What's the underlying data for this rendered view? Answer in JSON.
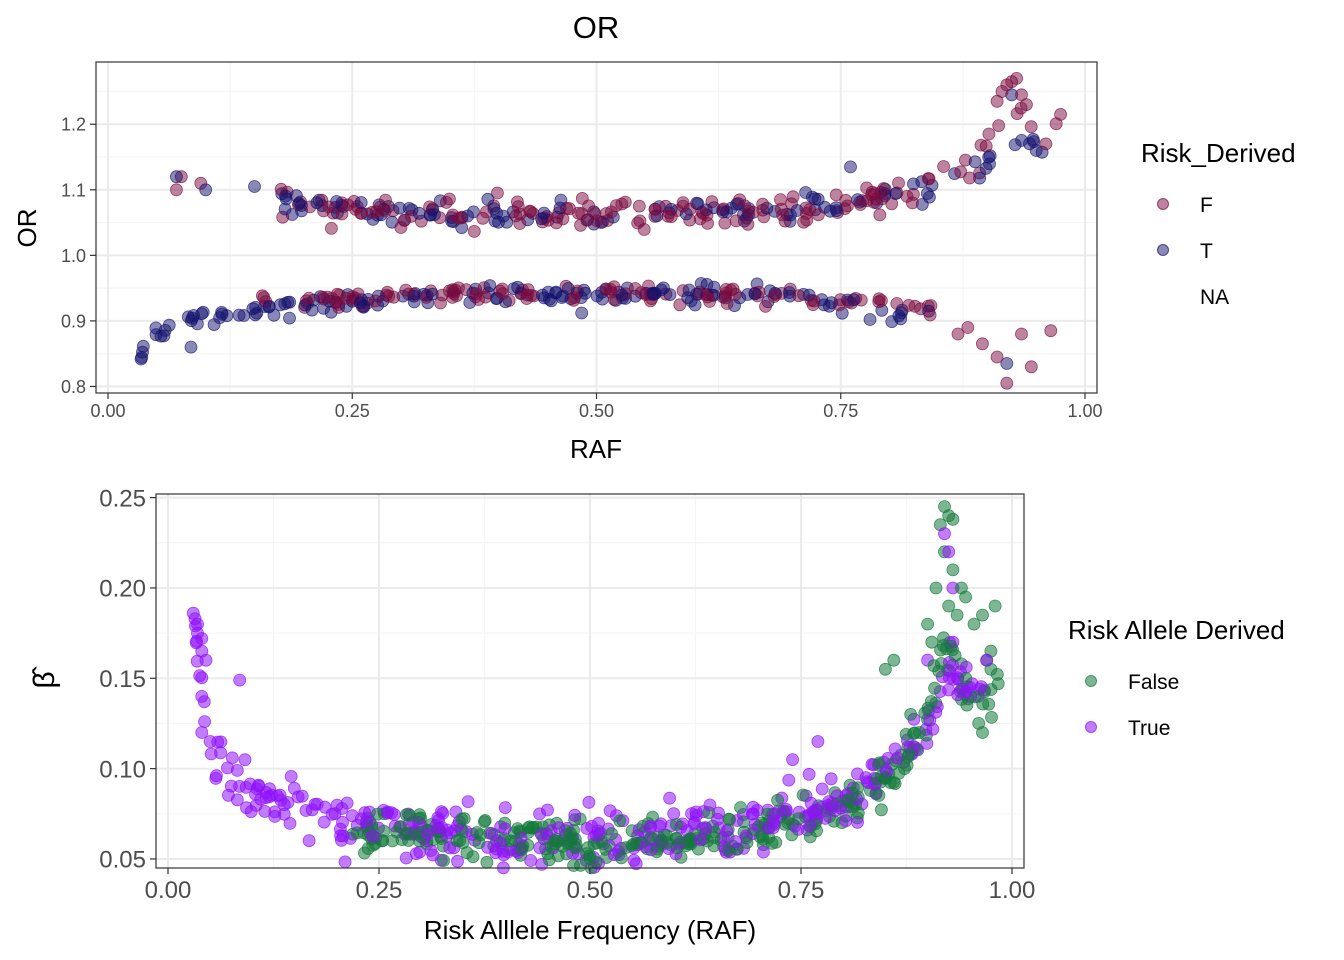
{
  "figure": {
    "background": "#FFFFFF",
    "panel_border": "#333333",
    "grid_major": "#EBEBEB",
    "grid_minor": "#F5F5F5"
  },
  "chart_data": [
    {
      "type": "scatter",
      "title": "OR",
      "xlabel": "RAF",
      "ylabel": "OR",
      "xlim": [
        0,
        1
      ],
      "ylim": [
        0.79,
        1.295
      ],
      "x_ticks": [
        "0.00",
        "0.25",
        "0.50",
        "0.75",
        "1.00"
      ],
      "x_tick_values": [
        0,
        0.25,
        0.5,
        0.75,
        1
      ],
      "y_ticks": [
        "0.8",
        "0.9",
        "1.0",
        "1.1",
        "1.2"
      ],
      "y_tick_values": [
        0.8,
        0.9,
        1.0,
        1.1,
        1.2
      ],
      "grid": true,
      "point_alpha": 0.5,
      "legend": {
        "title": "Risk_Derived",
        "position": "right",
        "entries": [
          {
            "label": "F",
            "color": "#7A0A3D"
          },
          {
            "label": "T",
            "color": "#14116E"
          },
          {
            "label": "NA",
            "color": "none"
          }
        ]
      },
      "series": [
        {
          "name": "F",
          "color": "#7A0A3D",
          "trends": [
            {
              "x": [
                0.18,
                0.25,
                0.35,
                0.45,
                0.55,
                0.65,
                0.72,
                0.78,
                0.83,
                0.87,
                0.9,
                0.92,
                0.93,
                0.95,
                0.97,
                0.98
              ],
              "y": [
                1.075,
                1.07,
                1.065,
                1.062,
                1.062,
                1.065,
                1.07,
                1.085,
                1.1,
                1.12,
                1.16,
                1.2,
                1.22,
                1.2,
                1.2,
                1.21
              ],
              "n": 160,
              "xjit": 0.01,
              "yjit": 0.012,
              "spread": 0.35
            },
            {
              "x": [
                0.15,
                0.25,
                0.35,
                0.45,
                0.55,
                0.65,
                0.72,
                0.78,
                0.82,
                0.85
              ],
              "y": [
                0.925,
                0.935,
                0.94,
                0.942,
                0.942,
                0.94,
                0.935,
                0.93,
                0.925,
                0.91
              ],
              "n": 120,
              "xjit": 0.01,
              "yjit": 0.006,
              "spread": 0.4
            }
          ],
          "points": [
            [
              0.07,
              1.1
            ],
            [
              0.075,
              1.12
            ],
            [
              0.095,
              1.11
            ],
            [
              0.87,
              0.88
            ],
            [
              0.88,
              0.89
            ],
            [
              0.895,
              0.865
            ],
            [
              0.91,
              0.845
            ],
            [
              0.92,
              0.805
            ],
            [
              0.935,
              0.88
            ],
            [
              0.945,
              0.83
            ],
            [
              0.965,
              0.885
            ],
            [
              0.93,
              1.27
            ],
            [
              0.925,
              1.265
            ],
            [
              0.92,
              1.26
            ],
            [
              0.94,
              1.23
            ],
            [
              0.915,
              1.25
            ],
            [
              0.96,
              1.17
            ],
            [
              0.975,
              1.215
            ],
            [
              0.91,
              1.235
            ],
            [
              0.935,
              1.245
            ]
          ]
        },
        {
          "name": "T",
          "color": "#14116E",
          "trends": [
            {
              "x": [
                0.03,
                0.035,
                0.04,
                0.05,
                0.07,
                0.1,
                0.15,
                0.2,
                0.3,
                0.4,
                0.5,
                0.6,
                0.65,
                0.7,
                0.75,
                0.78,
                0.8,
                0.82
              ],
              "y": [
                0.835,
                0.85,
                0.865,
                0.88,
                0.895,
                0.905,
                0.915,
                0.925,
                0.935,
                0.94,
                0.942,
                0.942,
                0.94,
                0.935,
                0.925,
                0.91,
                0.905,
                0.905
              ],
              "n": 150,
              "xjit": 0.005,
              "yjit": 0.006,
              "spread": 0.3
            },
            {
              "x": [
                0.17,
                0.25,
                0.35,
                0.45,
                0.55,
                0.65,
                0.72,
                0.78,
                0.83,
                0.88,
                0.92,
                0.95,
                0.97
              ],
              "y": [
                1.08,
                1.072,
                1.065,
                1.063,
                1.064,
                1.066,
                1.075,
                1.09,
                1.105,
                1.12,
                1.16,
                1.17,
                1.18
              ],
              "n": 120,
              "xjit": 0.01,
              "yjit": 0.01,
              "spread": 0.3
            }
          ],
          "points": [
            [
              0.07,
              1.12
            ],
            [
              0.1,
              1.1
            ],
            [
              0.15,
              1.105
            ],
            [
              0.085,
              0.86
            ],
            [
              0.92,
              0.835
            ],
            [
              0.925,
              1.245
            ],
            [
              0.95,
              1.16
            ],
            [
              0.76,
              1.135
            ],
            [
              0.84,
              0.915
            ]
          ]
        }
      ]
    },
    {
      "type": "scatter",
      "title": "",
      "xlabel": "Risk Alllele Frequency (RAF)",
      "ylabel": "β̂",
      "xlim": [
        0,
        1
      ],
      "ylim": [
        0.045,
        0.252
      ],
      "x_ticks": [
        "0.00",
        "0.25",
        "0.50",
        "0.75",
        "1.00"
      ],
      "x_tick_values": [
        0,
        0.25,
        0.5,
        0.75,
        1
      ],
      "y_ticks": [
        "0.05",
        "0.10",
        "0.15",
        "0.20",
        "0.25"
      ],
      "y_tick_values": [
        0.05,
        0.1,
        0.15,
        0.2,
        0.25
      ],
      "grid": true,
      "point_alpha": 0.55,
      "legend": {
        "title": "Risk Allele Derived",
        "position": "right",
        "entries": [
          {
            "label": "False",
            "color": "#137A3A"
          },
          {
            "label": "True",
            "color": "#8F12FA"
          }
        ]
      },
      "series": [
        {
          "name": "False",
          "color": "#137A3A",
          "trends": [
            {
              "x": [
                0.22,
                0.3,
                0.4,
                0.5,
                0.6,
                0.7,
                0.75,
                0.8,
                0.85,
                0.88,
                0.9,
                0.92,
                0.94,
                0.96,
                0.98
              ],
              "y": [
                0.065,
                0.063,
                0.06,
                0.059,
                0.06,
                0.065,
                0.072,
                0.08,
                0.095,
                0.11,
                0.13,
                0.17,
                0.15,
                0.13,
                0.15
              ],
              "n": 320,
              "xjit": 0.015,
              "yjit": 0.006,
              "spread": 0.35
            }
          ],
          "points": [
            [
              0.92,
              0.245
            ],
            [
              0.925,
              0.24
            ],
            [
              0.915,
              0.235
            ],
            [
              0.93,
              0.238
            ],
            [
              0.92,
              0.22
            ],
            [
              0.91,
              0.2
            ],
            [
              0.93,
              0.21
            ],
            [
              0.94,
              0.2
            ],
            [
              0.945,
              0.195
            ],
            [
              0.98,
              0.19
            ],
            [
              0.965,
              0.185
            ],
            [
              0.975,
              0.165
            ],
            [
              0.97,
              0.16
            ],
            [
              0.86,
              0.16
            ],
            [
              0.85,
              0.155
            ],
            [
              0.88,
              0.13
            ],
            [
              0.9,
              0.18
            ],
            [
              0.905,
              0.17
            ],
            [
              0.925,
              0.19
            ],
            [
              0.935,
              0.185
            ],
            [
              0.955,
              0.18
            ],
            [
              0.975,
              0.155
            ],
            [
              0.965,
              0.12
            ]
          ]
        },
        {
          "name": "True",
          "color": "#8F12FA",
          "trends": [
            {
              "x": [
                0.03,
                0.035,
                0.04,
                0.05,
                0.07,
                0.1,
                0.15,
                0.2,
                0.3,
                0.4,
                0.5,
                0.6,
                0.7,
                0.75,
                0.8,
                0.85,
                0.9,
                0.93,
                0.95,
                0.97
              ],
              "y": [
                0.18,
                0.165,
                0.14,
                0.115,
                0.1,
                0.09,
                0.08,
                0.072,
                0.064,
                0.06,
                0.059,
                0.062,
                0.068,
                0.075,
                0.085,
                0.1,
                0.12,
                0.16,
                0.14,
                0.15
              ],
              "n": 360,
              "xjit": 0.012,
              "yjit": 0.006,
              "spread": 0.35
            }
          ],
          "points": [
            [
              0.03,
              0.186
            ],
            [
              0.032,
              0.183
            ],
            [
              0.035,
              0.18
            ],
            [
              0.04,
              0.172
            ],
            [
              0.045,
              0.16
            ],
            [
              0.04,
              0.14
            ],
            [
              0.085,
              0.149
            ],
            [
              0.04,
              0.12
            ],
            [
              0.05,
              0.115
            ],
            [
              0.04,
              0.165
            ],
            [
              0.035,
              0.175
            ],
            [
              0.92,
              0.23
            ],
            [
              0.925,
              0.22
            ],
            [
              0.93,
              0.2
            ],
            [
              0.93,
              0.17
            ],
            [
              0.95,
              0.145
            ],
            [
              0.97,
              0.16
            ],
            [
              0.96,
              0.14
            ],
            [
              0.9,
              0.16
            ],
            [
              0.77,
              0.115
            ],
            [
              0.74,
              0.105
            ]
          ]
        }
      ]
    }
  ]
}
